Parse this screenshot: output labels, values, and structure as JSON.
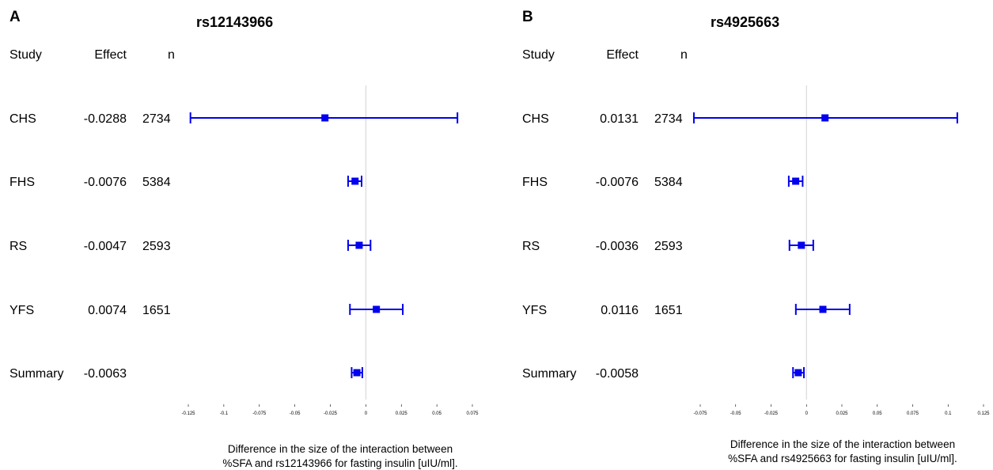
{
  "columns": {
    "study": "Study",
    "effect": "Effect",
    "n": "n"
  },
  "colors": {
    "ci": "#0000ee",
    "zero_line": "#d3d3d3"
  },
  "chart_data": [
    {
      "type": "forest",
      "panel": "A",
      "title": "rs12143966",
      "xlabel_lines": [
        "Difference in the size of the interaction between",
        "%SFA and rs12143966 for fasting insulin [uIU/ml]."
      ],
      "xlim": [
        -0.125,
        0.075
      ],
      "xticks": [
        -0.125,
        -0.1,
        -0.075,
        -0.05,
        -0.025,
        0,
        0.025,
        0.05,
        0.075
      ],
      "xtick_labels": [
        "-0.125",
        "-0.1",
        "-0.075",
        "-0.05",
        "-0.025",
        "0",
        "0.025",
        "0.05",
        "0.075"
      ],
      "rows": [
        {
          "study": "CHS",
          "effect_label": "-0.0288",
          "n": "2734",
          "effect": -0.0288,
          "ci_low": -0.1235,
          "ci_high": 0.0645
        },
        {
          "study": "FHS",
          "effect_label": "-0.0076",
          "n": "5384",
          "effect": -0.0076,
          "ci_low": -0.0125,
          "ci_high": -0.003
        },
        {
          "study": "RS",
          "effect_label": "-0.0047",
          "n": "2593",
          "effect": -0.0047,
          "ci_low": -0.0125,
          "ci_high": 0.0033
        },
        {
          "study": "YFS",
          "effect_label": "0.0074",
          "n": "1651",
          "effect": 0.0074,
          "ci_low": -0.0112,
          "ci_high": 0.026
        },
        {
          "study": "Summary",
          "effect_label": "-0.0063",
          "n": "",
          "effect": -0.0063,
          "ci_low": -0.01,
          "ci_high": -0.0025
        }
      ]
    },
    {
      "type": "forest",
      "panel": "B",
      "title": "rs4925663",
      "xlabel_lines": [
        "Difference in the size of the interaction between",
        "%SFA and rs4925663 for fasting insulin [uIU/ml]."
      ],
      "xlim": [
        -0.075,
        0.125
      ],
      "xticks": [
        -0.075,
        -0.05,
        -0.025,
        0,
        0.025,
        0.05,
        0.075,
        0.1,
        0.125
      ],
      "xtick_labels": [
        "-0.075",
        "-0.05",
        "-0.025",
        "0",
        "0.025",
        "0.05",
        "0.075",
        "0.1",
        "0.125"
      ],
      "rows": [
        {
          "study": "CHS",
          "effect_label": "0.0131",
          "n": "2734",
          "effect": 0.0131,
          "ci_low": -0.0795,
          "ci_high": 0.1065
        },
        {
          "study": "FHS",
          "effect_label": "-0.0076",
          "n": "5384",
          "effect": -0.0076,
          "ci_low": -0.0125,
          "ci_high": -0.0027
        },
        {
          "study": "RS",
          "effect_label": "-0.0036",
          "n": "2593",
          "effect": -0.0036,
          "ci_low": -0.012,
          "ci_high": 0.0048
        },
        {
          "study": "YFS",
          "effect_label": "0.0116",
          "n": "1651",
          "effect": 0.0116,
          "ci_low": -0.0075,
          "ci_high": 0.0305
        },
        {
          "study": "Summary",
          "effect_label": "-0.0058",
          "n": "",
          "effect": -0.0058,
          "ci_low": -0.0095,
          "ci_high": -0.0018
        }
      ]
    }
  ]
}
